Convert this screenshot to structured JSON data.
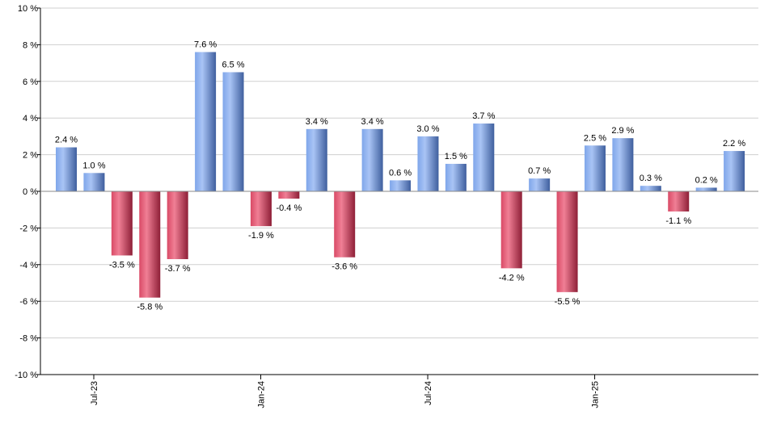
{
  "chart_data": {
    "type": "bar",
    "title": "",
    "xlabel": "",
    "ylabel": "",
    "ylim": [
      -10,
      10
    ],
    "y_ticks": [
      10,
      8,
      6,
      4,
      2,
      0,
      -2,
      -4,
      -6,
      -8,
      -10
    ],
    "y_tick_labels": [
      "10 %",
      "8 %",
      "6 %",
      "4 %",
      "2 %",
      "0 %",
      "-2 %",
      "-4 %",
      "-6 %",
      "-8 %",
      "-10 %"
    ],
    "grid": true,
    "legend": "none",
    "colors": {
      "positive": "#6f93d6",
      "negative": "#c8334f"
    },
    "categories": [
      "2023-07",
      "2023-08",
      "2023-09",
      "2023-10",
      "2023-11",
      "2023-12",
      "2024-01",
      "2024-02",
      "2024-03",
      "2024-04",
      "2024-05",
      "2024-06",
      "2024-07",
      "2024-08",
      "2024-09",
      "2024-10",
      "2024-11",
      "2024-12",
      "2025-01",
      "2025-02",
      "2025-03",
      "2025-04",
      "2025-05",
      "2025-06",
      "2025-07"
    ],
    "values": [
      2.4,
      1.0,
      -3.5,
      -5.8,
      -3.7,
      7.6,
      6.5,
      -1.9,
      -0.4,
      3.4,
      -3.6,
      3.4,
      0.6,
      3.0,
      1.5,
      3.7,
      -4.2,
      0.7,
      -5.5,
      2.5,
      2.9,
      0.3,
      -1.1,
      0.2,
      2.2
    ],
    "value_labels": [
      "2.4 %",
      "1.0 %",
      "-3.5 %",
      "-5.8 %",
      "-3.7 %",
      "7.6 %",
      "6.5 %",
      "-1.9 %",
      "-0.4 %",
      "3.4 %",
      "-3.6 %",
      "3.4 %",
      "0.6 %",
      "3.0 %",
      "1.5 %",
      "3.7 %",
      "-4.2 %",
      "0.7 %",
      "-5.5 %",
      "2.5 %",
      "2.9 %",
      "0.3 %",
      "-1.1 %",
      "0.2 %",
      "2.2 %"
    ],
    "x_ticks": [
      {
        "category": "2023-07",
        "label": "Jul-23"
      },
      {
        "category": "2024-01",
        "label": "Jan-24"
      },
      {
        "category": "2024-07",
        "label": "Jul-24"
      },
      {
        "category": "2025-01",
        "label": "Jan-25"
      }
    ]
  }
}
